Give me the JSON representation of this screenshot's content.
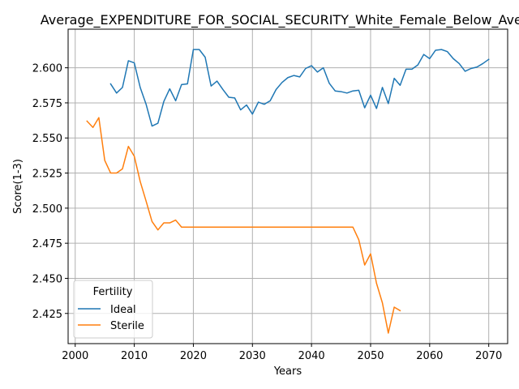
{
  "chart_data": {
    "type": "line",
    "title": "Average_EXPENDITURE_FOR_SOCIAL_SECURITY_White_Female_Below_Avera",
    "xlabel": "Years",
    "ylabel": "Score(1-3)",
    "xlim": [
      1998.8,
      2073.2
    ],
    "ylim": [
      2.4035,
      2.6275
    ],
    "xticks": [
      2000,
      2010,
      2020,
      2030,
      2040,
      2050,
      2060,
      2070
    ],
    "yticks": [
      2.425,
      2.45,
      2.475,
      2.5,
      2.525,
      2.55,
      2.575,
      2.6
    ],
    "ytick_labels": [
      "2.425",
      "2.450",
      "2.475",
      "2.500",
      "2.525",
      "2.550",
      "2.575",
      "2.600"
    ],
    "grid": true,
    "legend": {
      "title": "Fertility",
      "placement": "lower-left"
    },
    "series": [
      {
        "name": "Ideal",
        "color": "#1f77b4",
        "points": [
          [
            2006,
            2.5885
          ],
          [
            2007,
            2.582
          ],
          [
            2008,
            2.586
          ],
          [
            2009,
            2.605
          ],
          [
            2010,
            2.6035
          ],
          [
            2011,
            2.586
          ],
          [
            2012,
            2.574
          ],
          [
            2013,
            2.5585
          ],
          [
            2014,
            2.5605
          ],
          [
            2015,
            2.576
          ],
          [
            2016,
            2.585
          ],
          [
            2017,
            2.5765
          ],
          [
            2018,
            2.588
          ],
          [
            2019,
            2.5885
          ],
          [
            2020,
            2.613
          ],
          [
            2021,
            2.613
          ],
          [
            2022,
            2.6075
          ],
          [
            2023,
            2.587
          ],
          [
            2024,
            2.5905
          ],
          [
            2025,
            2.5845
          ],
          [
            2026,
            2.579
          ],
          [
            2027,
            2.5785
          ],
          [
            2028,
            2.57
          ],
          [
            2029,
            2.5735
          ],
          [
            2030,
            2.567
          ],
          [
            2031,
            2.5755
          ],
          [
            2032,
            2.574
          ],
          [
            2033,
            2.5765
          ],
          [
            2034,
            2.5845
          ],
          [
            2035,
            2.5895
          ],
          [
            2036,
            2.593
          ],
          [
            2037,
            2.5945
          ],
          [
            2038,
            2.5935
          ],
          [
            2039,
            2.5995
          ],
          [
            2040,
            2.6015
          ],
          [
            2041,
            2.597
          ],
          [
            2042,
            2.6
          ],
          [
            2043,
            2.589
          ],
          [
            2044,
            2.5835
          ],
          [
            2045,
            2.583
          ],
          [
            2046,
            2.582
          ],
          [
            2047,
            2.5835
          ],
          [
            2048,
            2.584
          ],
          [
            2049,
            2.5715
          ],
          [
            2050,
            2.5805
          ],
          [
            2051,
            2.571
          ],
          [
            2052,
            2.586
          ],
          [
            2053,
            2.5745
          ],
          [
            2054,
            2.5925
          ],
          [
            2055,
            2.5875
          ],
          [
            2056,
            2.599
          ],
          [
            2057,
            2.599
          ],
          [
            2058,
            2.602
          ],
          [
            2059,
            2.6095
          ],
          [
            2060,
            2.6065
          ],
          [
            2061,
            2.6125
          ],
          [
            2062,
            2.613
          ],
          [
            2063,
            2.6115
          ],
          [
            2064,
            2.6065
          ],
          [
            2065,
            2.603
          ],
          [
            2066,
            2.5975
          ],
          [
            2067,
            2.5995
          ],
          [
            2068,
            2.6005
          ],
          [
            2069,
            2.603
          ],
          [
            2070,
            2.606
          ]
        ]
      },
      {
        "name": "Sterile",
        "color": "#ff7f0e",
        "points": [
          [
            2002,
            2.562
          ],
          [
            2003,
            2.5575
          ],
          [
            2004,
            2.5645
          ],
          [
            2005,
            2.534
          ],
          [
            2006,
            2.525
          ],
          [
            2007,
            2.525
          ],
          [
            2008,
            2.528
          ],
          [
            2009,
            2.544
          ],
          [
            2010,
            2.537
          ],
          [
            2011,
            2.519
          ],
          [
            2012,
            2.505
          ],
          [
            2013,
            2.4905
          ],
          [
            2014,
            2.4845
          ],
          [
            2015,
            2.4895
          ],
          [
            2016,
            2.4895
          ],
          [
            2017,
            2.4915
          ],
          [
            2018,
            2.4865
          ],
          [
            2019,
            2.4865
          ],
          [
            2020,
            2.4865
          ],
          [
            2021,
            2.4865
          ],
          [
            2022,
            2.4865
          ],
          [
            2023,
            2.4865
          ],
          [
            2024,
            2.4865
          ],
          [
            2025,
            2.4865
          ],
          [
            2026,
            2.4865
          ],
          [
            2027,
            2.4865
          ],
          [
            2028,
            2.4865
          ],
          [
            2029,
            2.4865
          ],
          [
            2030,
            2.4865
          ],
          [
            2031,
            2.4865
          ],
          [
            2032,
            2.4865
          ],
          [
            2033,
            2.4865
          ],
          [
            2034,
            2.4865
          ],
          [
            2035,
            2.4865
          ],
          [
            2036,
            2.4865
          ],
          [
            2037,
            2.4865
          ],
          [
            2038,
            2.4865
          ],
          [
            2039,
            2.4865
          ],
          [
            2040,
            2.4865
          ],
          [
            2041,
            2.4865
          ],
          [
            2042,
            2.4865
          ],
          [
            2043,
            2.4865
          ],
          [
            2044,
            2.4865
          ],
          [
            2045,
            2.4865
          ],
          [
            2046,
            2.4865
          ],
          [
            2047,
            2.4865
          ],
          [
            2048,
            2.4775
          ],
          [
            2049,
            2.4595
          ],
          [
            2050,
            2.4675
          ],
          [
            2051,
            2.4465
          ],
          [
            2052,
            2.4325
          ],
          [
            2053,
            2.411
          ],
          [
            2054,
            2.4295
          ],
          [
            2055,
            2.427
          ]
        ]
      }
    ]
  }
}
